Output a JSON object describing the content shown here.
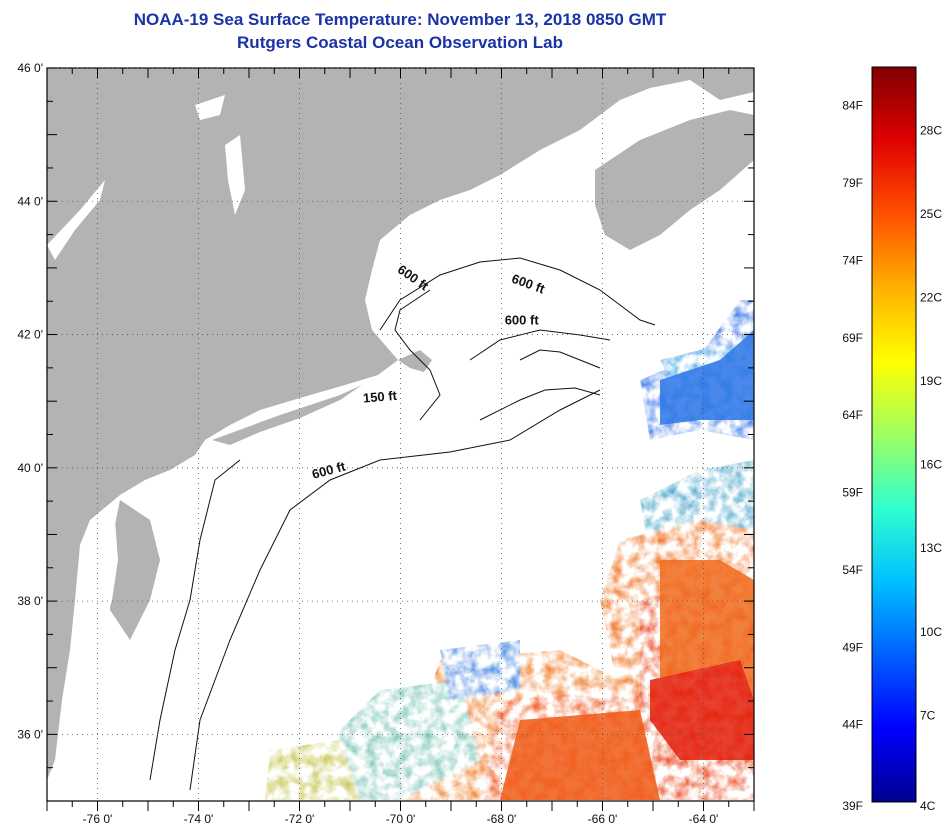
{
  "title": "NOAA-19 Sea Surface Temperature:  November 13, 2018 0850 GMT",
  "subtitle": "Rutgers Coastal Ocean Observation Lab",
  "map": {
    "lat_labels": [
      "46 0'",
      "44 0'",
      "42 0'",
      "40 0'",
      "38 0'",
      "36 0'"
    ],
    "lat_values": [
      46,
      44,
      42,
      40,
      38,
      36
    ],
    "lon_labels": [
      "-76 0'",
      "-74 0'",
      "-72 0'",
      "-70 0'",
      "-68 0'",
      "-66 0'",
      "-64 0'"
    ],
    "lon_values": [
      -76,
      -74,
      -72,
      -70,
      -68,
      -66,
      -64
    ],
    "lat_range": [
      35,
      46
    ],
    "lon_range": [
      -77,
      -63
    ],
    "land_color": "#b3b3b3",
    "ocean_no_data_color": "#ffffff",
    "contour_labels": [
      {
        "text": "600 ft",
        "lon": -69.8,
        "lat": 42.8,
        "rotate": 35
      },
      {
        "text": "600 ft",
        "lon": -67.5,
        "lat": 42.7,
        "rotate": 20
      },
      {
        "text": "600 ft",
        "lon": -67.6,
        "lat": 42.15,
        "rotate": 0
      },
      {
        "text": "150 ft",
        "lon": -70.4,
        "lat": 41.0,
        "rotate": -5
      },
      {
        "text": "600 ft",
        "lon": -71.4,
        "lat": 39.9,
        "rotate": -15
      }
    ]
  },
  "colorbar": {
    "f_labels": [
      "84F",
      "79F",
      "74F",
      "69F",
      "64F",
      "59F",
      "54F",
      "49F",
      "44F",
      "39F"
    ],
    "f_values": [
      84,
      79,
      74,
      69,
      64,
      59,
      54,
      49,
      44,
      39
    ],
    "c_labels": [
      "28C",
      "25C",
      "22C",
      "19C",
      "16C",
      "13C",
      "10C",
      "7C",
      "4C"
    ],
    "c_values": [
      28,
      25,
      22,
      19,
      16,
      13,
      10,
      7,
      4
    ],
    "range_f": [
      39,
      86.5
    ],
    "colors": [
      "#00008f",
      "#0000ff",
      "#0060ff",
      "#00c0ff",
      "#30ffd0",
      "#a0ff60",
      "#ffff00",
      "#ffb000",
      "#ff5000",
      "#e00000",
      "#800000"
    ]
  }
}
